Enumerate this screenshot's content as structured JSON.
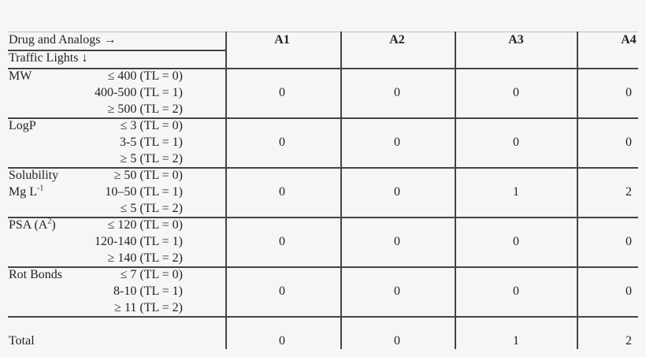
{
  "header": {
    "row1_label": "Drug and Analogs →",
    "row2_label": "Traffic Lights ↓",
    "columns": [
      "A1",
      "A2",
      "A3",
      "A4"
    ]
  },
  "rows": [
    {
      "name": "MW",
      "name2": "",
      "criteria": [
        "≤ 400 (TL = 0)",
        "400-500 (TL = 1)",
        "≥ 500 (TL = 2)"
      ],
      "values": [
        "0",
        "0",
        "0",
        "0"
      ]
    },
    {
      "name": "LogP",
      "name2": "",
      "criteria": [
        "≤ 3 (TL = 0)",
        "3-5 (TL = 1)",
        "≥ 5 (TL = 2)"
      ],
      "values": [
        "0",
        "0",
        "0",
        "0"
      ]
    },
    {
      "name": "Solubility",
      "name2": "Mg L",
      "name2_sup": "-1",
      "criteria": [
        "≥ 50 (TL = 0)",
        "10–50 (TL = 1)",
        "≤ 5 (TL = 2)"
      ],
      "values": [
        "0",
        "0",
        "1",
        "2"
      ]
    },
    {
      "name": "PSA (A",
      "name_sup": "2",
      "name_end": ")",
      "name2": "",
      "criteria": [
        "≤ 120 (TL = 0)",
        "120-140 (TL = 1)",
        "≥ 140 (TL = 2)"
      ],
      "values": [
        "0",
        "0",
        "0",
        "0"
      ]
    },
    {
      "name": "Rot Bonds",
      "name2": "",
      "criteria": [
        "≤ 7 (TL = 0)",
        "8-10 (TL = 1)",
        "≥ 11 (TL = 2)"
      ],
      "values": [
        "0",
        "0",
        "0",
        "0"
      ]
    }
  ],
  "total": {
    "label": "Total",
    "values": [
      "0",
      "0",
      "1",
      "2"
    ]
  }
}
